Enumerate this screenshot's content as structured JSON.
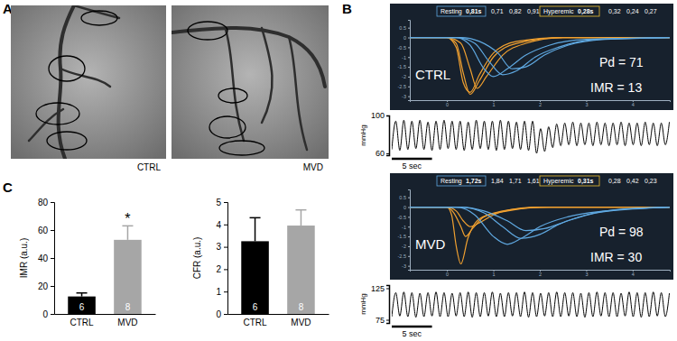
{
  "figure": {
    "panel_labels": [
      "A",
      "B",
      "C"
    ],
    "angiograms": [
      {
        "caption": "CTRL"
      },
      {
        "caption": "MVD"
      }
    ]
  },
  "chart_data": [
    {
      "type": "line",
      "title": "CTRL",
      "annotations": [
        {
          "value": 71,
          "label": "Pd = 71"
        },
        {
          "value": 13,
          "label": "IMR = 13"
        }
      ],
      "resting": {
        "label": "Resting",
        "mean": {
          "value": 0.81,
          "label": "0,81s"
        },
        "values": [
          {
            "value": 0.71,
            "label": "0,71"
          },
          {
            "value": 0.82,
            "label": "0,82"
          },
          {
            "value": 0.91,
            "label": "0,91"
          }
        ]
      },
      "hyperemic": {
        "label": "Hyperemic",
        "mean": {
          "value": 0.28,
          "label": "0,28s"
        },
        "values": [
          {
            "value": 0.32,
            "label": "0,32"
          },
          {
            "value": 0.24,
            "label": "0,24"
          },
          {
            "value": 0.27,
            "label": "0,27"
          }
        ]
      },
      "xlim": [
        -0.8,
        4.8
      ],
      "xticks": [
        0,
        1,
        2,
        3,
        4
      ],
      "ylim": [
        -3.2,
        0.9
      ],
      "yticks": [
        0.5,
        0,
        -0.5,
        -1,
        -1.5,
        -2,
        -2.5,
        -3
      ],
      "series": [
        {
          "color": "#f0a030",
          "x": [
            -0.8,
            0,
            0.2,
            0.35,
            0.5,
            0.7,
            1.0,
            1.5,
            2.5,
            4.8
          ],
          "values": [
            0,
            0,
            -0.5,
            -2.3,
            -2.8,
            -1.9,
            -0.8,
            -0.2,
            0,
            0
          ]
        },
        {
          "color": "#f0a030",
          "x": [
            -0.8,
            0,
            0.2,
            0.35,
            0.5,
            0.7,
            1.0,
            1.5,
            2.5,
            4.8
          ],
          "values": [
            0,
            0,
            -0.3,
            -1.8,
            -2.9,
            -2.2,
            -1.0,
            -0.3,
            0,
            0
          ]
        },
        {
          "color": "#f0a030",
          "x": [
            -0.8,
            0,
            0.3,
            0.5,
            0.65,
            0.85,
            1.2,
            1.7,
            2.5,
            4.8
          ],
          "values": [
            0,
            0,
            -0.3,
            -1.6,
            -2.6,
            -2.0,
            -0.9,
            -0.3,
            0,
            0
          ]
        },
        {
          "color": "#5fa8e0",
          "x": [
            -0.8,
            0.2,
            0.5,
            0.8,
            1.0,
            1.3,
            1.7,
            2.2,
            3,
            4.8
          ],
          "values": [
            0,
            0,
            -0.4,
            -1.6,
            -2.0,
            -1.6,
            -0.9,
            -0.4,
            -0.1,
            0
          ]
        },
        {
          "color": "#5fa8e0",
          "x": [
            -0.8,
            0.2,
            0.6,
            0.9,
            1.2,
            1.5,
            1.9,
            2.4,
            3.2,
            4.8
          ],
          "values": [
            0,
            0,
            -0.3,
            -1.2,
            -1.9,
            -1.7,
            -1.0,
            -0.5,
            -0.1,
            0
          ]
        },
        {
          "color": "#5fa8e0",
          "x": [
            -0.8,
            0.3,
            0.7,
            1.1,
            1.4,
            1.7,
            2.1,
            2.6,
            3.4,
            4.8
          ],
          "values": [
            0,
            0,
            -0.2,
            -0.8,
            -1.6,
            -1.5,
            -0.9,
            -0.4,
            -0.1,
            0
          ]
        }
      ]
    },
    {
      "type": "line",
      "y_label": "mmHg",
      "xlim": [
        0,
        35
      ],
      "ylim": [
        58,
        100
      ],
      "yticks": [
        60,
        100
      ],
      "tick_labels": "y",
      "scale_bar": {
        "value": 5,
        "label": "5 sec"
      },
      "series": [
        {
          "color": "#000000",
          "x": [
            0,
            0.5,
            1,
            1.5,
            2,
            2.5,
            3,
            3.5,
            4,
            4.5,
            5,
            5.5,
            6,
            6.5,
            7,
            7.5,
            8,
            8.5,
            9,
            9.5,
            10,
            10.5,
            11,
            11.5,
            12,
            12.5,
            13,
            13.5,
            14,
            14.5,
            15,
            15.5,
            16,
            16.5,
            17,
            17.5,
            18,
            18.5,
            19,
            19.5,
            20,
            20.5,
            21,
            21.5,
            22,
            22.5,
            23,
            23.5,
            24,
            24.5,
            25,
            25.5,
            26,
            26.5,
            27,
            27.5,
            28,
            28.5,
            29,
            29.5,
            30,
            30.5,
            31,
            31.5,
            32,
            32.5,
            33,
            33.5,
            34,
            34.5
          ],
          "values": [
            64,
            94,
            63,
            95,
            64,
            94,
            65,
            95,
            64,
            93,
            63,
            94,
            64,
            95,
            65,
            94,
            64,
            94,
            63,
            93,
            64,
            95,
            65,
            94,
            64,
            94,
            63,
            95,
            64,
            94,
            65,
            93,
            64,
            94,
            63,
            94,
            60,
            86,
            62,
            88,
            66,
            91,
            68,
            92,
            69,
            93,
            68,
            92,
            69,
            92,
            68,
            93,
            69,
            92,
            68,
            92,
            69,
            93,
            68,
            92,
            69,
            92,
            68,
            93,
            69,
            92,
            68,
            92,
            69,
            93
          ]
        }
      ]
    },
    {
      "type": "line",
      "title": "MVD",
      "annotations": [
        {
          "value": 98,
          "label": "Pd = 98"
        },
        {
          "value": 30,
          "label": "IMR = 30"
        }
      ],
      "resting": {
        "label": "Resting",
        "mean": {
          "value": 1.72,
          "label": "1,72s"
        },
        "values": [
          {
            "value": 1.84,
            "label": "1,84"
          },
          {
            "value": 1.71,
            "label": "1,71"
          },
          {
            "value": 1.61,
            "label": "1,61"
          }
        ]
      },
      "hyperemic": {
        "label": "Hyperemic",
        "mean": {
          "value": 0.31,
          "label": "0,31s"
        },
        "values": [
          {
            "value": 0.28,
            "label": "0,28"
          },
          {
            "value": 0.42,
            "label": "0,42"
          },
          {
            "value": 0.23,
            "label": "0,23"
          }
        ]
      },
      "xlim": [
        -0.8,
        4.8
      ],
      "xticks": [
        0,
        1,
        2,
        3,
        4
      ],
      "ylim": [
        -3.2,
        0.9
      ],
      "yticks": [
        0.5,
        0,
        -0.5,
        -1,
        -1.5,
        -2,
        -2.5,
        -3
      ],
      "series": [
        {
          "color": "#f0a030",
          "x": [
            -0.8,
            0,
            0.1,
            0.2,
            0.3,
            0.45,
            0.7,
            1.2,
            2,
            4.8
          ],
          "values": [
            0,
            0,
            -0.4,
            -2.0,
            -2.9,
            -1.6,
            -0.6,
            -0.2,
            0,
            0
          ]
        },
        {
          "color": "#f0a030",
          "x": [
            -0.8,
            0,
            0.15,
            0.3,
            0.4,
            0.55,
            0.8,
            1.3,
            2,
            4.8
          ],
          "values": [
            0,
            0,
            -0.3,
            -1.0,
            -1.5,
            -1.1,
            -0.5,
            -0.2,
            0,
            0
          ]
        },
        {
          "color": "#f0a030",
          "x": [
            -0.8,
            0,
            0.2,
            0.35,
            0.5,
            0.7,
            1.0,
            1.5,
            2.2,
            4.8
          ],
          "values": [
            0,
            0,
            -0.2,
            -0.7,
            -1.0,
            -0.8,
            -0.4,
            -0.1,
            0,
            0
          ]
        },
        {
          "color": "#5fa8e0",
          "x": [
            -0.8,
            0.2,
            0.6,
            1.0,
            1.3,
            1.6,
            2.0,
            2.6,
            3.4,
            4.8
          ],
          "values": [
            0,
            0,
            -0.4,
            -1.5,
            -1.9,
            -1.6,
            -1.0,
            -0.5,
            -0.2,
            0
          ]
        },
        {
          "color": "#5fa8e0",
          "x": [
            -0.8,
            0.3,
            0.8,
            1.2,
            1.6,
            2.0,
            2.4,
            3.0,
            3.8,
            4.8
          ],
          "values": [
            0,
            0,
            -0.3,
            -1.0,
            -1.6,
            -1.4,
            -0.9,
            -0.4,
            -0.1,
            0
          ]
        },
        {
          "color": "#5fa8e0",
          "x": [
            -0.8,
            0.3,
            0.8,
            1.3,
            1.7,
            2.1,
            2.6,
            3.2,
            4.0,
            4.8
          ],
          "values": [
            0,
            0,
            -0.2,
            -0.7,
            -1.2,
            -1.1,
            -0.7,
            -0.3,
            -0.1,
            0
          ]
        }
      ]
    },
    {
      "type": "line",
      "y_label": "mmHg",
      "xlim": [
        0,
        35
      ],
      "ylim": [
        70,
        130
      ],
      "yticks": [
        75,
        125
      ],
      "tick_labels": "y",
      "scale_bar": {
        "value": 5,
        "label": "5 sec"
      },
      "series": [
        {
          "color": "#000000",
          "x": [
            0,
            0.5,
            1,
            1.5,
            2,
            2.5,
            3,
            3.5,
            4,
            4.5,
            5,
            5.5,
            6,
            6.5,
            7,
            7.5,
            8,
            8.5,
            9,
            9.5,
            10,
            10.5,
            11,
            11.5,
            12,
            12.5,
            13,
            13.5,
            14,
            14.5,
            15,
            15.5,
            16,
            16.5,
            17,
            17.5,
            18,
            18.5,
            19,
            19.5,
            20,
            20.5,
            21,
            21.5,
            22,
            22.5,
            23,
            23.5,
            24,
            24.5,
            25,
            25.5,
            26,
            26.5,
            27,
            27.5,
            28,
            28.5,
            29,
            29.5,
            30,
            30.5,
            31,
            31.5,
            32,
            32.5,
            33,
            33.5,
            34,
            34.5
          ],
          "values": [
            80,
            118,
            81,
            119,
            80,
            118,
            79,
            117,
            80,
            118,
            81,
            119,
            80,
            118,
            80,
            117,
            81,
            118,
            80,
            119,
            79,
            118,
            80,
            118,
            81,
            119,
            80,
            117,
            80,
            118,
            81,
            118,
            80,
            119,
            79,
            118,
            80,
            117,
            81,
            118,
            80,
            119,
            80,
            118,
            81,
            118,
            80,
            117,
            79,
            118,
            80,
            119,
            81,
            118,
            80,
            118,
            80,
            117,
            81,
            119,
            80,
            118,
            79,
            118,
            80,
            119,
            81,
            118,
            80,
            117
          ]
        }
      ]
    },
    {
      "type": "bar",
      "categories": [
        "CTRL",
        "MVD"
      ],
      "y_label": "IMR (a.u.)",
      "values": [
        12.5,
        53
      ],
      "errors": [
        2.5,
        10
      ],
      "colors": [
        "#000000",
        "#a6a6a6"
      ],
      "n": [
        6,
        8
      ],
      "significance": [
        null,
        "*"
      ],
      "ylim": [
        0,
        80
      ],
      "yticks": [
        0,
        20,
        40,
        60,
        80
      ]
    },
    {
      "type": "bar",
      "categories": [
        "CTRL",
        "MVD"
      ],
      "y_label": "CFR (a.u.)",
      "values": [
        3.25,
        3.95
      ],
      "errors": [
        1.05,
        0.7
      ],
      "colors": [
        "#000000",
        "#a6a6a6"
      ],
      "n": [
        6,
        8
      ],
      "ylim": [
        0,
        5
      ],
      "yticks": [
        0,
        1,
        2,
        3,
        4,
        5
      ]
    }
  ]
}
